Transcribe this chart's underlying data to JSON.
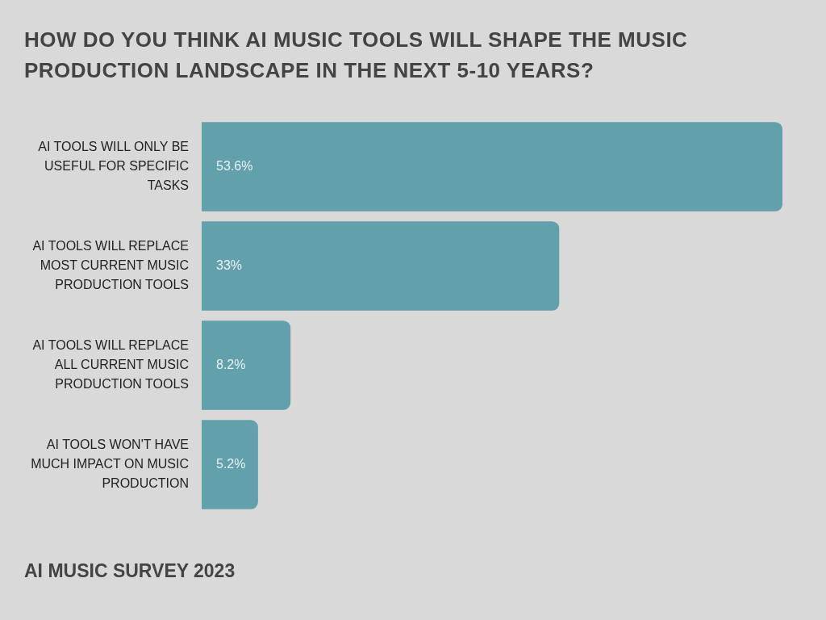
{
  "chart_data": {
    "type": "bar",
    "orientation": "horizontal",
    "title": "HOW DO YOU THINK AI MUSIC TOOLS WILL SHAPE THE MUSIC PRODUCTION LANDSCAPE IN THE NEXT 5-10 YEARS?",
    "categories": [
      "AI TOOLS WILL ONLY BE USEFUL FOR SPECIFIC TASKS",
      "AI TOOLS WILL REPLACE MOST CURRENT MUSIC PRODUCTION TOOLS",
      "AI TOOLS WILL REPLACE ALL CURRENT MUSIC PRODUCTION TOOLS",
      "AI TOOLS WON'T HAVE MUCH IMPACT ON MUSIC PRODUCTION"
    ],
    "values": [
      53.6,
      33,
      8.2,
      5.2
    ],
    "color": "#62a0ab",
    "value_labels": [
      "53.6%",
      "33%",
      "8.2%",
      "5.2%"
    ],
    "tick_labels": "y",
    "annotations": [
      "AI MUSIC SURVEY 2023"
    ]
  }
}
